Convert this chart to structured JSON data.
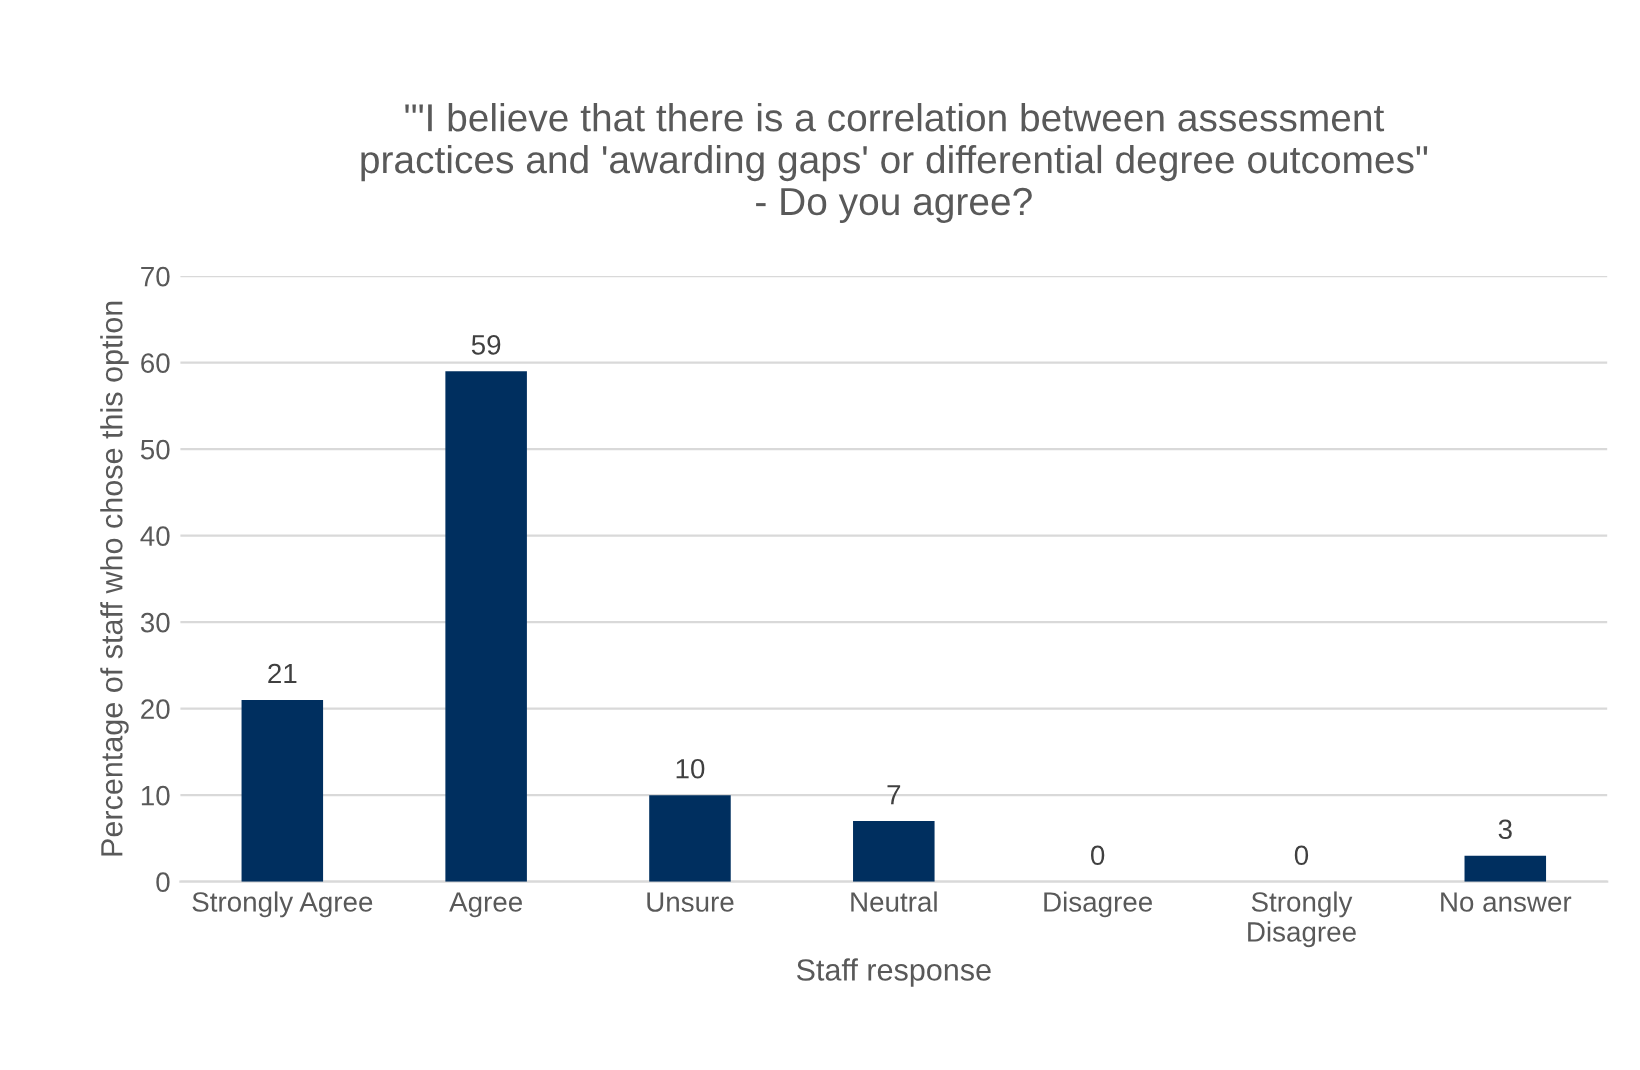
{
  "chart_data": {
    "type": "bar",
    "title": "'\"I believe that there is a correlation between assessment\npractices and 'awarding gaps' or differential degree outcomes\"\n- Do you agree?",
    "xlabel": "Staff response",
    "ylabel": "Percentage of staff who chose this option",
    "categories": [
      "Strongly Agree",
      "Agree",
      "Unsure",
      "Neutral",
      "Disagree",
      "Strongly\nDisagree",
      "No answer"
    ],
    "values": [
      21,
      59,
      10,
      7,
      0,
      0,
      3
    ],
    "color": "#002f5f",
    "data_labels": true,
    "ylim": [
      0,
      70
    ],
    "yticks": [
      0,
      10,
      20,
      30,
      40,
      50,
      60,
      70
    ],
    "grid": "y"
  }
}
